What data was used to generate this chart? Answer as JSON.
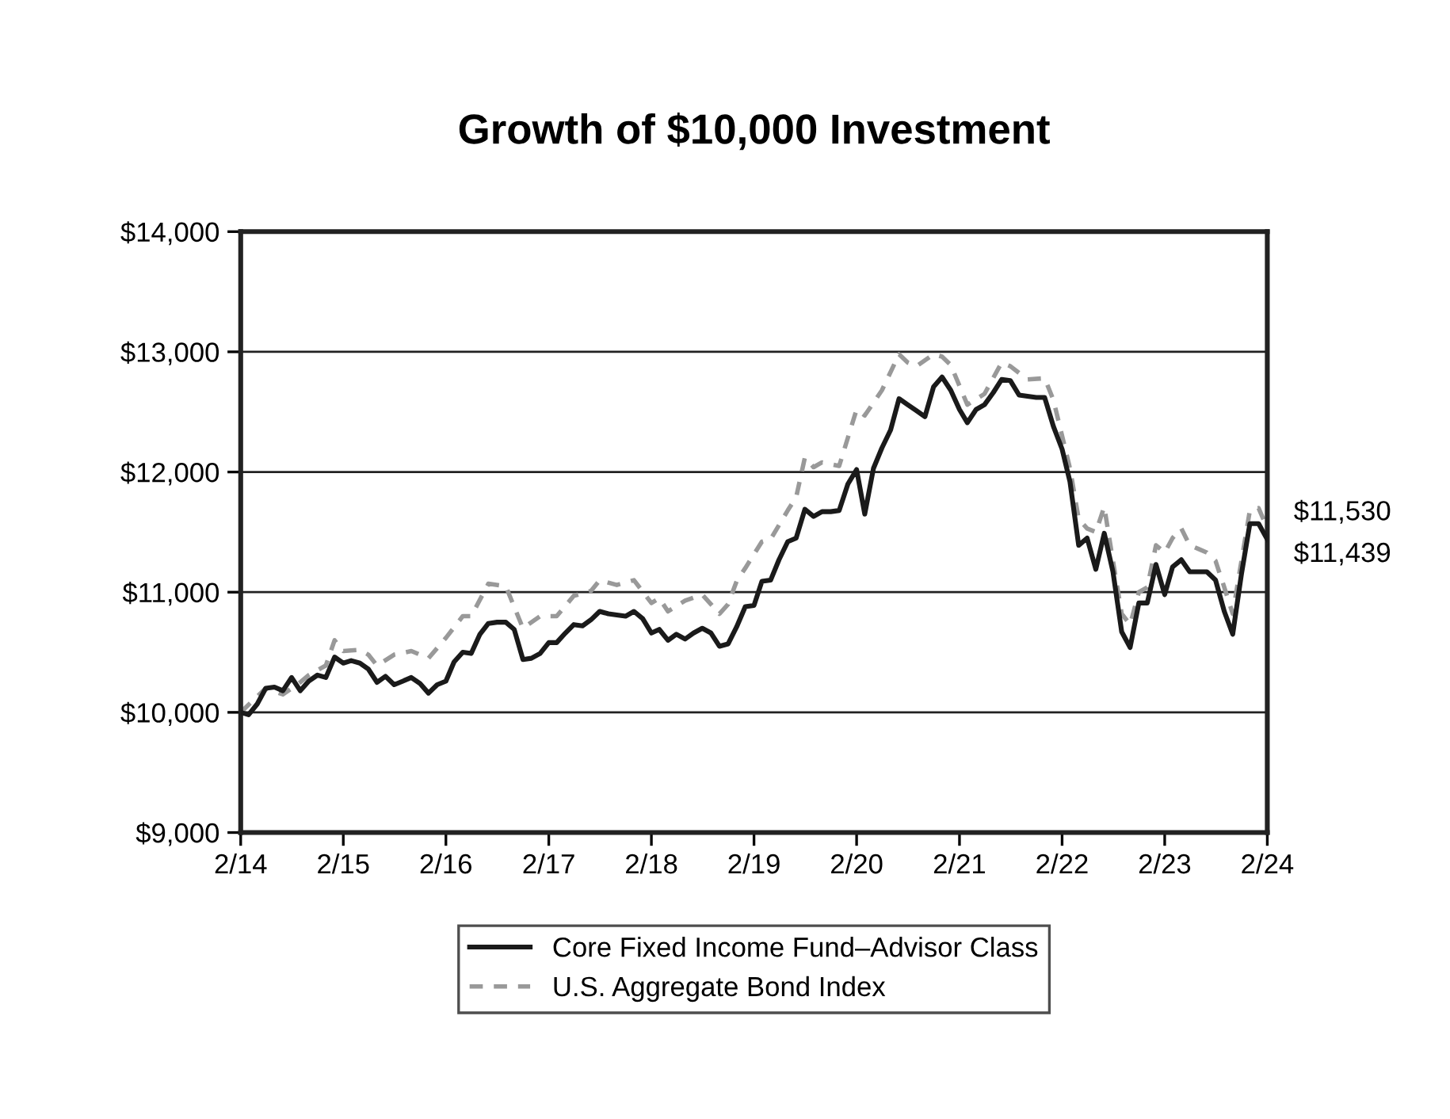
{
  "chart_data": {
    "type": "line",
    "title": "Growth of $10,000 Investment",
    "xlim": [
      "2014-02",
      "2024-02"
    ],
    "xticks": [
      {
        "value": "2014-02",
        "label": "2/14"
      },
      {
        "value": "2015-02",
        "label": "2/15"
      },
      {
        "value": "2016-02",
        "label": "2/16"
      },
      {
        "value": "2017-02",
        "label": "2/17"
      },
      {
        "value": "2018-02",
        "label": "2/18"
      },
      {
        "value": "2019-02",
        "label": "2/19"
      },
      {
        "value": "2020-02",
        "label": "2/20"
      },
      {
        "value": "2021-02",
        "label": "2/21"
      },
      {
        "value": "2022-02",
        "label": "2/22"
      },
      {
        "value": "2023-02",
        "label": "2/23"
      },
      {
        "value": "2024-02",
        "label": "2/24"
      }
    ],
    "ylim": [
      9000,
      14000
    ],
    "yticks": [
      {
        "value": 9000,
        "label": "$9,000"
      },
      {
        "value": 10000,
        "label": "$10,000"
      },
      {
        "value": 11000,
        "label": "$11,000"
      },
      {
        "value": 12000,
        "label": "$12,000"
      },
      {
        "value": 13000,
        "label": "$13,000"
      },
      {
        "value": 14000,
        "label": "$14,000"
      }
    ],
    "grid": "y",
    "legend": "bottom",
    "marker": "none",
    "series": [
      {
        "name": "Core Fixed Income Fund–Advisor Class",
        "color": "#1a1a1a",
        "line_style": "solid",
        "x": [
          "2014-02",
          "2014-03",
          "2014-04",
          "2014-05",
          "2014-06",
          "2014-07",
          "2014-08",
          "2014-09",
          "2014-10",
          "2014-11",
          "2014-12",
          "2015-01",
          "2015-02",
          "2015-03",
          "2015-04",
          "2015-05",
          "2015-06",
          "2015-07",
          "2015-08",
          "2015-09",
          "2015-10",
          "2015-11",
          "2015-12",
          "2016-01",
          "2016-02",
          "2016-03",
          "2016-04",
          "2016-05",
          "2016-06",
          "2016-07",
          "2016-08",
          "2016-09",
          "2016-10",
          "2016-11",
          "2016-12",
          "2017-01",
          "2017-02",
          "2017-03",
          "2017-04",
          "2017-05",
          "2017-06",
          "2017-07",
          "2017-08",
          "2017-09",
          "2017-10",
          "2017-11",
          "2017-12",
          "2018-01",
          "2018-02",
          "2018-03",
          "2018-04",
          "2018-05",
          "2018-06",
          "2018-07",
          "2018-08",
          "2018-09",
          "2018-10",
          "2018-11",
          "2018-12",
          "2019-01",
          "2019-02",
          "2019-03",
          "2019-04",
          "2019-05",
          "2019-06",
          "2019-07",
          "2019-08",
          "2019-09",
          "2019-10",
          "2019-11",
          "2019-12",
          "2020-01",
          "2020-02",
          "2020-03",
          "2020-04",
          "2020-05",
          "2020-06",
          "2020-07",
          "2020-08",
          "2020-09",
          "2020-10",
          "2020-11",
          "2020-12",
          "2021-01",
          "2021-02",
          "2021-03",
          "2021-04",
          "2021-05",
          "2021-06",
          "2021-07",
          "2021-08",
          "2021-09",
          "2021-10",
          "2021-11",
          "2021-12",
          "2022-01",
          "2022-02",
          "2022-03",
          "2022-04",
          "2022-05",
          "2022-06",
          "2022-07",
          "2022-08",
          "2022-09",
          "2022-10",
          "2022-11",
          "2022-12",
          "2023-01",
          "2023-02",
          "2023-03",
          "2023-04",
          "2023-05",
          "2023-06",
          "2023-07",
          "2023-08",
          "2023-09",
          "2023-10",
          "2023-11",
          "2023-12",
          "2024-01",
          "2024-02"
        ],
        "values": [
          10000,
          9980,
          10070,
          10200,
          10210,
          10180,
          10290,
          10180,
          10260,
          10310,
          10290,
          10460,
          10410,
          10430,
          10410,
          10360,
          10250,
          10300,
          10230,
          10260,
          10290,
          10240,
          10160,
          10230,
          10260,
          10420,
          10500,
          10490,
          10650,
          10740,
          10750,
          10750,
          10690,
          10440,
          10450,
          10490,
          10580,
          10580,
          10660,
          10730,
          10720,
          10770,
          10840,
          10820,
          10810,
          10800,
          10840,
          10780,
          10660,
          10690,
          10600,
          10650,
          10610,
          10660,
          10700,
          10660,
          10550,
          10570,
          10710,
          10880,
          10890,
          11090,
          11100,
          11270,
          11420,
          11450,
          11690,
          11630,
          11670,
          11670,
          11680,
          11900,
          12020,
          11650,
          12030,
          12200,
          12350,
          12610,
          12560,
          12510,
          12460,
          12710,
          12790,
          12680,
          12520,
          12410,
          12520,
          12560,
          12660,
          12770,
          12760,
          12640,
          12630,
          12620,
          12620,
          12380,
          12190,
          11920,
          11390,
          11450,
          11190,
          11490,
          11170,
          10670,
          10540,
          10910,
          10910,
          11230,
          10980,
          11210,
          11270,
          11170,
          11170,
          11170,
          11100,
          10840,
          10650,
          11150,
          11570,
          11570,
          11439
        ]
      },
      {
        "name": "U.S. Aggregate Bond Index",
        "color": "#999999",
        "line_style": "dashed",
        "x": [
          "2014-02",
          "2014-05",
          "2014-07",
          "2014-09",
          "2014-10",
          "2014-12",
          "2015-01",
          "2015-02",
          "2015-04",
          "2015-05",
          "2015-06",
          "2015-08",
          "2015-10",
          "2015-12",
          "2016-02",
          "2016-04",
          "2016-05",
          "2016-07",
          "2016-09",
          "2016-11",
          "2017-01",
          "2017-03",
          "2017-05",
          "2017-07",
          "2017-08",
          "2017-10",
          "2017-12",
          "2018-02",
          "2018-03",
          "2018-04",
          "2018-06",
          "2018-08",
          "2018-10",
          "2018-11",
          "2018-12",
          "2019-01",
          "2019-03",
          "2019-04",
          "2019-06",
          "2019-07",
          "2019-08",
          "2019-09",
          "2019-10",
          "2019-12",
          "2020-02",
          "2020-03",
          "2020-05",
          "2020-07",
          "2020-08",
          "2020-09",
          "2020-11",
          "2020-12",
          "2021-01",
          "2021-03",
          "2021-05",
          "2021-07",
          "2021-08",
          "2021-10",
          "2021-12",
          "2022-01",
          "2022-03",
          "2022-04",
          "2022-05",
          "2022-06",
          "2022-07",
          "2022-08",
          "2022-09",
          "2022-10",
          "2022-11",
          "2022-12",
          "2023-01",
          "2023-02",
          "2023-03",
          "2023-04",
          "2023-05",
          "2023-06",
          "2023-07",
          "2023-08",
          "2023-09",
          "2023-10",
          "2023-11",
          "2023-12",
          "2024-01",
          "2024-02"
        ],
        "values": [
          10000,
          10200,
          10150,
          10250,
          10310,
          10390,
          10600,
          10510,
          10520,
          10480,
          10390,
          10480,
          10510,
          10450,
          10620,
          10800,
          10800,
          11070,
          11050,
          10700,
          10800,
          10800,
          10970,
          11010,
          11100,
          11060,
          11100,
          10910,
          10950,
          10840,
          10930,
          10980,
          10820,
          10900,
          11090,
          11200,
          11420,
          11440,
          11680,
          11790,
          12120,
          12040,
          12080,
          12050,
          12520,
          12470,
          12680,
          12980,
          12910,
          12880,
          12980,
          12960,
          12890,
          12560,
          12650,
          12910,
          12880,
          12770,
          12780,
          12600,
          12030,
          11610,
          11530,
          11500,
          11710,
          11260,
          10820,
          10730,
          11000,
          11040,
          11390,
          11330,
          11450,
          11530,
          11390,
          11360,
          11330,
          11260,
          11040,
          10820,
          11260,
          11680,
          11700,
          11530
        ]
      }
    ],
    "annotations": [
      {
        "text": "$11,530",
        "x": "2024-02",
        "y": 11530
      },
      {
        "text": "$11,439",
        "x": "2024-02",
        "y": 11439
      }
    ]
  }
}
